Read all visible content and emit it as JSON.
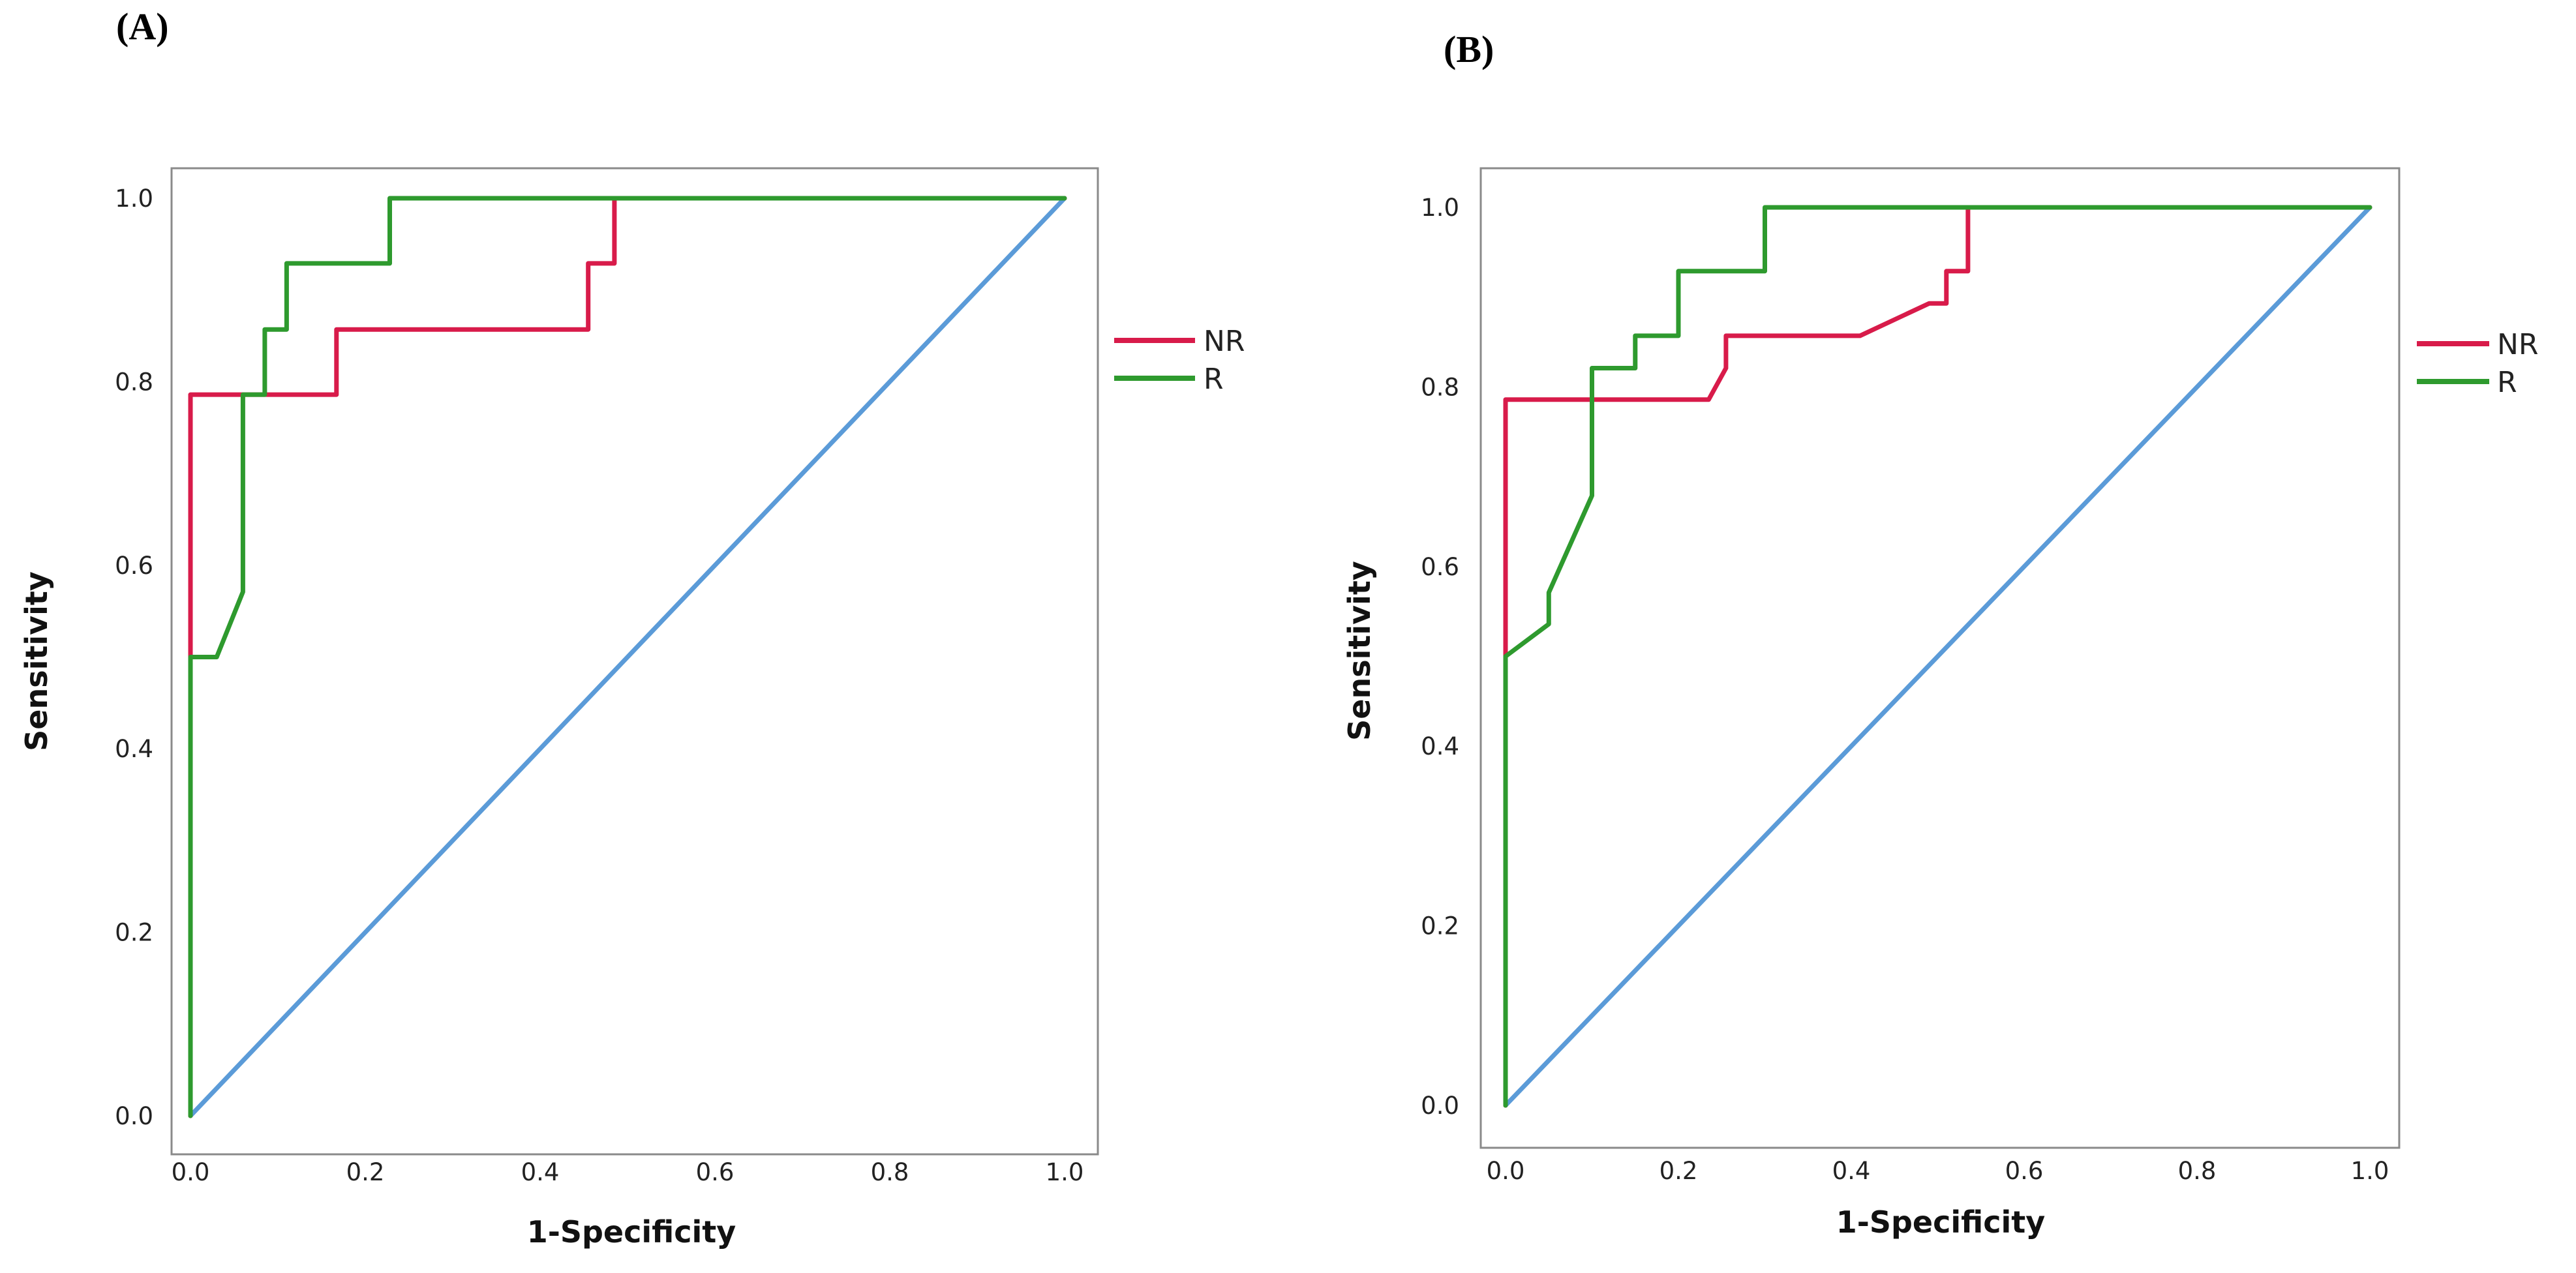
{
  "chart_data": [
    {
      "type": "line",
      "panel_label": "(A)",
      "xlabel": "1-Specificity",
      "ylabel": "Sensitivity",
      "xlim": [
        0,
        1
      ],
      "ylim": [
        0,
        1
      ],
      "xticks": [
        "0.0",
        "0.2",
        "0.4",
        "0.6",
        "0.8",
        "1.0"
      ],
      "yticks": [
        "0.0",
        "0.2",
        "0.4",
        "0.6",
        "0.8",
        "1.0"
      ],
      "legend_position": "right",
      "series": [
        {
          "name": "NR",
          "color": "#d81b4a",
          "in_legend": true,
          "x": [
            0,
            0,
            0,
            0.167,
            0.167,
            0.455,
            0.455,
            0.485,
            0.485,
            1.0
          ],
          "y": [
            0,
            0.5,
            0.786,
            0.786,
            0.857,
            0.857,
            0.929,
            0.929,
            1.0,
            1.0
          ]
        },
        {
          "name": "R",
          "color": "#2e9a2e",
          "in_legend": true,
          "x": [
            0,
            0,
            0.03,
            0.06,
            0.06,
            0.085,
            0.085,
            0.11,
            0.11,
            0.228,
            0.228,
            1.0
          ],
          "y": [
            0,
            0.5,
            0.5,
            0.571,
            0.786,
            0.786,
            0.857,
            0.857,
            0.929,
            0.929,
            1.0,
            1.0
          ]
        },
        {
          "name": "Reference Line",
          "color": "#5b9bd8",
          "in_legend": false,
          "x": [
            0,
            1
          ],
          "y": [
            0,
            1
          ]
        }
      ]
    },
    {
      "type": "line",
      "panel_label": "(B)",
      "xlabel": "1-Specificity",
      "ylabel": "Sensitivity",
      "xlim": [
        0,
        1
      ],
      "ylim": [
        0,
        1
      ],
      "xticks": [
        "0.0",
        "0.2",
        "0.4",
        "0.6",
        "0.8",
        "1.0"
      ],
      "yticks": [
        "0.0",
        "0.2",
        "0.4",
        "0.6",
        "0.8",
        "1.0"
      ],
      "legend_position": "right",
      "series": [
        {
          "name": "NR",
          "color": "#d81b4a",
          "in_legend": true,
          "x": [
            0,
            0,
            0,
            0.235,
            0.255,
            0.255,
            0.41,
            0.49,
            0.51,
            0.51,
            0.525,
            0.535,
            0.535,
            1.0
          ],
          "y": [
            0,
            0.5,
            0.786,
            0.786,
            0.821,
            0.857,
            0.857,
            0.893,
            0.893,
            0.929,
            0.929,
            0.929,
            1.0,
            1.0
          ]
        },
        {
          "name": "R",
          "color": "#2e9a2e",
          "in_legend": true,
          "x": [
            0,
            0,
            0.05,
            0.05,
            0.1,
            0.1,
            0.15,
            0.15,
            0.2,
            0.2,
            0.3,
            0.3,
            1.0
          ],
          "y": [
            0,
            0.5,
            0.536,
            0.571,
            0.679,
            0.821,
            0.821,
            0.857,
            0.857,
            0.929,
            0.929,
            1.0,
            1.0
          ]
        },
        {
          "name": "Reference Line",
          "color": "#5b9bd8",
          "in_legend": false,
          "x": [
            0,
            1
          ],
          "y": [
            0,
            1
          ]
        }
      ]
    }
  ]
}
